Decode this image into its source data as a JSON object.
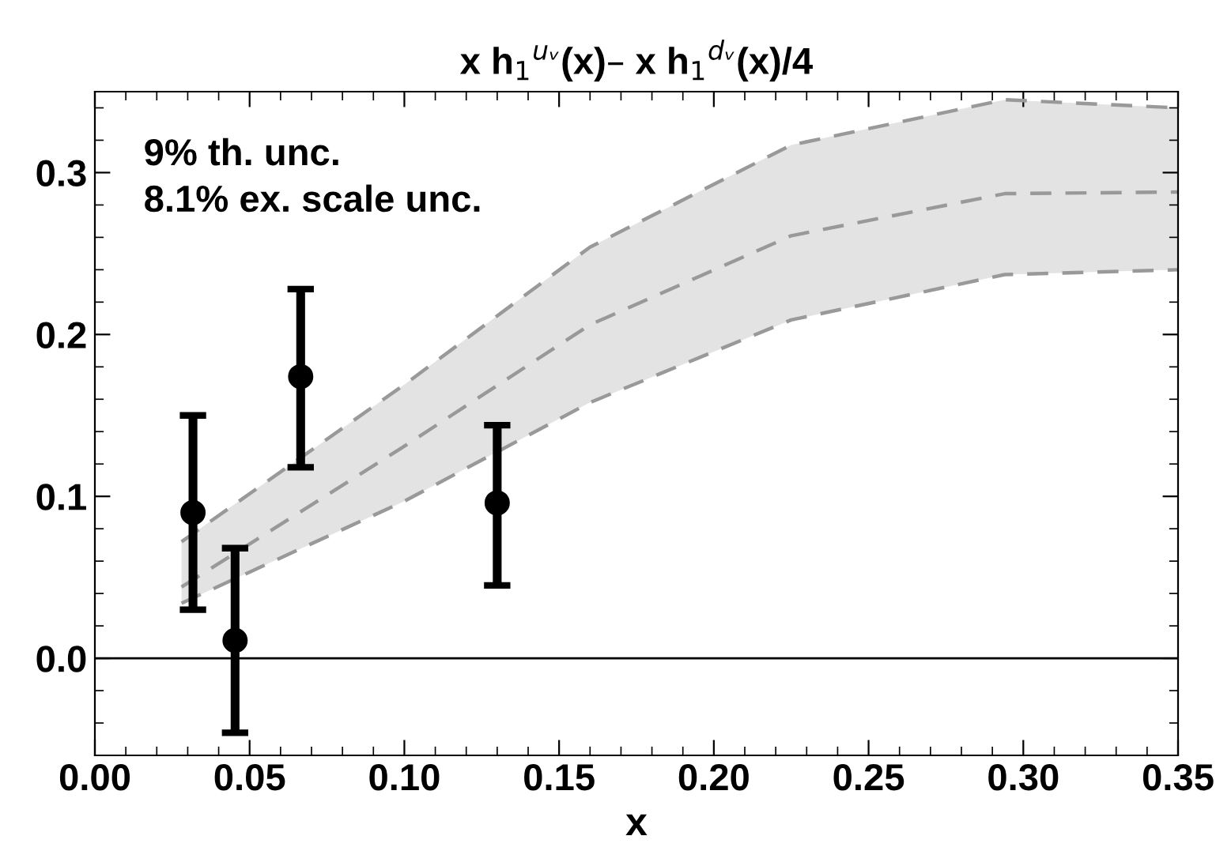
{
  "chart_data": {
    "type": "scatter",
    "title": "x h$_{1}$$^{uᵥ}$(x)– x h$_{1}$$^{dᵥ}$(x)/4",
    "xlabel": "x",
    "annotations": [
      "9% th. unc.",
      "8.1% ex. scale unc."
    ],
    "xlim": [
      0,
      0.35
    ],
    "xticks": [
      {
        "value": 0,
        "label": "0.00"
      },
      0.05,
      {
        "value": 0.1,
        "label": "0.10"
      },
      0.15,
      {
        "value": 0.2,
        "label": "0.20"
      },
      0.25,
      {
        "value": 0.3,
        "label": "0.30"
      },
      0.35
    ],
    "ylim": [
      -0.06,
      0.35
    ],
    "yticks": [
      {
        "value": 0,
        "label": "0.0"
      },
      0.1,
      0.2,
      0.3
    ],
    "grid": false,
    "legend": false,
    "ref_lines": [
      {
        "axis": "y",
        "value": 0,
        "color": "#000000"
      }
    ],
    "series": [
      {
        "type": "line",
        "color": "#999999",
        "line_style": "dashed",
        "marker": "none",
        "x": [
          0.028,
          0.1,
          0.16,
          0.225,
          0.294,
          0.35
        ],
        "values": [
          0.072,
          0.169,
          0.254,
          0.317,
          0.345,
          0.34
        ]
      },
      {
        "type": "line",
        "color": "#999999",
        "line_style": "dashed",
        "marker": "none",
        "x": [
          0.028,
          0.1,
          0.16,
          0.225,
          0.294,
          0.35
        ],
        "values": [
          0.044,
          0.131,
          0.206,
          0.261,
          0.287,
          0.288
        ],
        "lower": [
          0.034,
          0.097,
          0.158,
          0.209,
          0.237,
          0.24
        ],
        "upper": [
          0.072,
          0.169,
          0.254,
          0.317,
          0.345,
          0.34
        ]
      },
      {
        "type": "line",
        "color": "#999999",
        "line_style": "dashed",
        "marker": "none",
        "x": [
          0.028,
          0.1,
          0.16,
          0.225,
          0.294,
          0.35
        ],
        "values": [
          0.034,
          0.097,
          0.158,
          0.209,
          0.237,
          0.24
        ]
      },
      {
        "color": "#000000",
        "marker": "circle",
        "x": [
          0.0317,
          0.0453,
          0.0665,
          0.13
        ],
        "values": [
          0.09,
          0.011,
          0.174,
          0.096
        ],
        "errors": [
          [
            0.03,
            0.15
          ],
          [
            -0.046,
            0.068
          ],
          [
            0.118,
            0.228
          ],
          [
            0.045,
            0.144
          ]
        ]
      }
    ]
  }
}
